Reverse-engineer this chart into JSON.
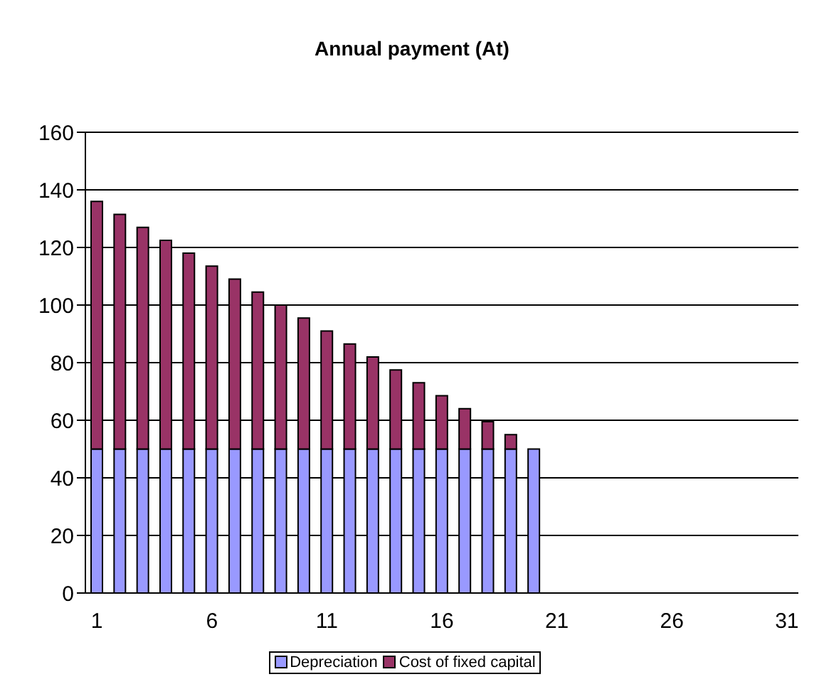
{
  "chart_data": {
    "type": "bar",
    "title": "Annual payment (At)",
    "stacked": true,
    "x": [
      1,
      2,
      3,
      4,
      5,
      6,
      7,
      8,
      9,
      10,
      11,
      12,
      13,
      14,
      15,
      16,
      17,
      18,
      19,
      20
    ],
    "series": [
      {
        "name": "Depreciation",
        "color": "#9999ff",
        "values": [
          50,
          50,
          50,
          50,
          50,
          50,
          50,
          50,
          50,
          50,
          50,
          50,
          50,
          50,
          50,
          50,
          50,
          50,
          50,
          50
        ]
      },
      {
        "name": "Cost of fixed capital",
        "color": "#993366",
        "values": [
          86,
          81.5,
          77,
          72.5,
          68,
          63.5,
          59,
          54.5,
          50,
          45.5,
          41,
          36.5,
          32,
          27.5,
          23,
          18.5,
          14,
          9.5,
          5,
          0
        ]
      }
    ],
    "xlim": [
      0.5,
      31.5
    ],
    "xticks": [
      1,
      6,
      11,
      16,
      21,
      26,
      31
    ],
    "ylim": [
      0,
      160
    ],
    "yticks": [
      0,
      20,
      40,
      60,
      80,
      100,
      120,
      140,
      160
    ],
    "grid": "y",
    "legend": "bottom"
  }
}
